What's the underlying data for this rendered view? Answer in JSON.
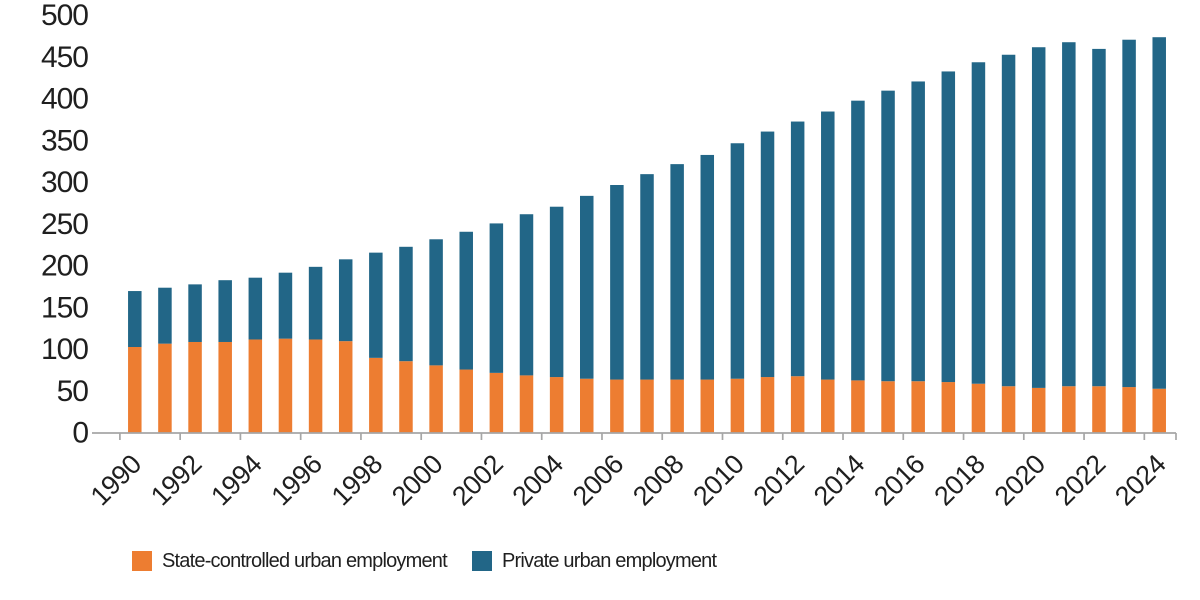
{
  "chart_data": {
    "type": "bar",
    "stacked": true,
    "title": "",
    "xlabel": "",
    "ylabel": "",
    "categories": [
      1990,
      1991,
      1992,
      1993,
      1994,
      1995,
      1996,
      1997,
      1998,
      1999,
      2000,
      2001,
      2002,
      2003,
      2004,
      2005,
      2006,
      2007,
      2008,
      2009,
      2010,
      2011,
      2012,
      2013,
      2014,
      2015,
      2016,
      2017,
      2018,
      2019,
      2020,
      2021,
      2022,
      2023,
      2024
    ],
    "series": [
      {
        "name": "State-controlled urban employment",
        "color": "#ED7D31",
        "values": [
          103,
          107,
          109,
          109,
          112,
          113,
          112,
          110,
          90,
          86,
          81,
          76,
          72,
          69,
          67,
          65,
          64,
          64,
          64,
          64,
          65,
          67,
          68,
          64,
          63,
          62,
          62,
          61,
          59,
          56,
          54,
          56,
          56,
          55,
          53
        ]
      },
      {
        "name": "Private urban employment",
        "color": "#226687",
        "values": [
          67,
          67,
          69,
          74,
          74,
          79,
          87,
          98,
          126,
          137,
          151,
          165,
          179,
          193,
          204,
          219,
          233,
          246,
          258,
          269,
          282,
          294,
          305,
          321,
          335,
          348,
          359,
          372,
          385,
          397,
          408,
          412,
          404,
          416,
          421
        ]
      }
    ],
    "totals": [
      170,
      174,
      178,
      183,
      186,
      192,
      199,
      208,
      216,
      223,
      232,
      241,
      251,
      262,
      271,
      284,
      297,
      310,
      322,
      333,
      347,
      361,
      373,
      385,
      398,
      410,
      421,
      433,
      444,
      453,
      462,
      468,
      460,
      471,
      474
    ],
    "ylim": [
      0,
      500
    ],
    "yticks": [
      0,
      50,
      100,
      150,
      200,
      250,
      300,
      350,
      400,
      450,
      500
    ],
    "xtick_labels": [
      "1990",
      "1992",
      "1994",
      "1996",
      "1998",
      "2000",
      "2002",
      "2004",
      "2006",
      "2008",
      "2010",
      "2012",
      "2014",
      "2016",
      "2018",
      "2020",
      "2022",
      "2024"
    ],
    "grid": false,
    "legend_position": "bottom",
    "axis_color": "#A6A6A6",
    "text_color": "#1f1f1f"
  },
  "legend": {
    "items": [
      {
        "label": "State-controlled urban employment",
        "color": "#ED7D31"
      },
      {
        "label": "Private urban employment",
        "color": "#226687"
      }
    ]
  }
}
